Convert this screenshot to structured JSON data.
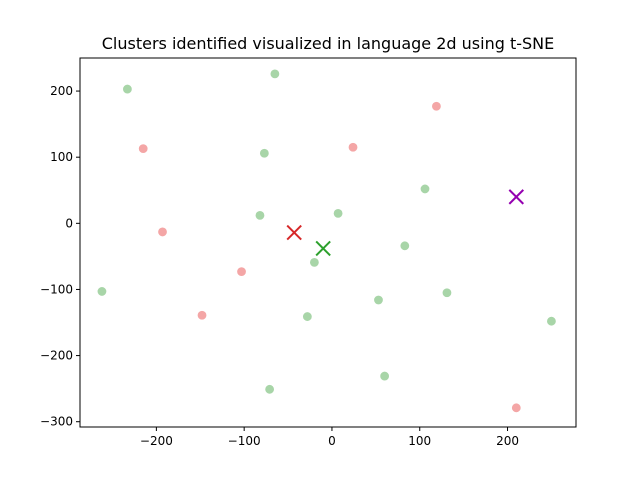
{
  "chart_data": {
    "type": "scatter",
    "title": "Clusters identified visualized in language 2d using t-SNE",
    "xlabel": "",
    "ylabel": "",
    "xlim": [
      -287,
      278
    ],
    "ylim": [
      -308,
      250
    ],
    "xticks": [
      -200,
      -100,
      0,
      100,
      200
    ],
    "yticks": [
      -300,
      -200,
      -100,
      0,
      100,
      200
    ],
    "grid": false,
    "colors": {
      "red_points": "#f4a6a6",
      "green_points": "#a8d5a8",
      "red_center": "#d62728",
      "green_center": "#2ca02c",
      "purple_center": "#9400b0"
    },
    "series": [
      {
        "color_key": "red_points",
        "points": [
          {
            "x": -215,
            "y": 113
          },
          {
            "x": -193,
            "y": -13
          },
          {
            "x": -148,
            "y": -139
          },
          {
            "x": -103,
            "y": -73
          },
          {
            "x": 24,
            "y": 115
          },
          {
            "x": 119,
            "y": 177
          },
          {
            "x": 210,
            "y": -279
          }
        ]
      },
      {
        "color_key": "green_points",
        "points": [
          {
            "x": -233,
            "y": 203
          },
          {
            "x": -262,
            "y": -103
          },
          {
            "x": -65,
            "y": 226
          },
          {
            "x": -77,
            "y": 106
          },
          {
            "x": -82,
            "y": 12
          },
          {
            "x": -20,
            "y": -59
          },
          {
            "x": -28,
            "y": -141
          },
          {
            "x": -71,
            "y": -251
          },
          {
            "x": 7,
            "y": 15
          },
          {
            "x": 60,
            "y": -231
          },
          {
            "x": 53,
            "y": -116
          },
          {
            "x": 83,
            "y": -34
          },
          {
            "x": 106,
            "y": 52
          },
          {
            "x": 131,
            "y": -105
          },
          {
            "x": 250,
            "y": -148
          }
        ]
      }
    ],
    "centers": [
      {
        "color_key": "red_center",
        "x": -43,
        "y": -14
      },
      {
        "color_key": "green_center",
        "x": -10,
        "y": -38
      },
      {
        "color_key": "purple_center",
        "x": 210,
        "y": 40
      }
    ]
  }
}
